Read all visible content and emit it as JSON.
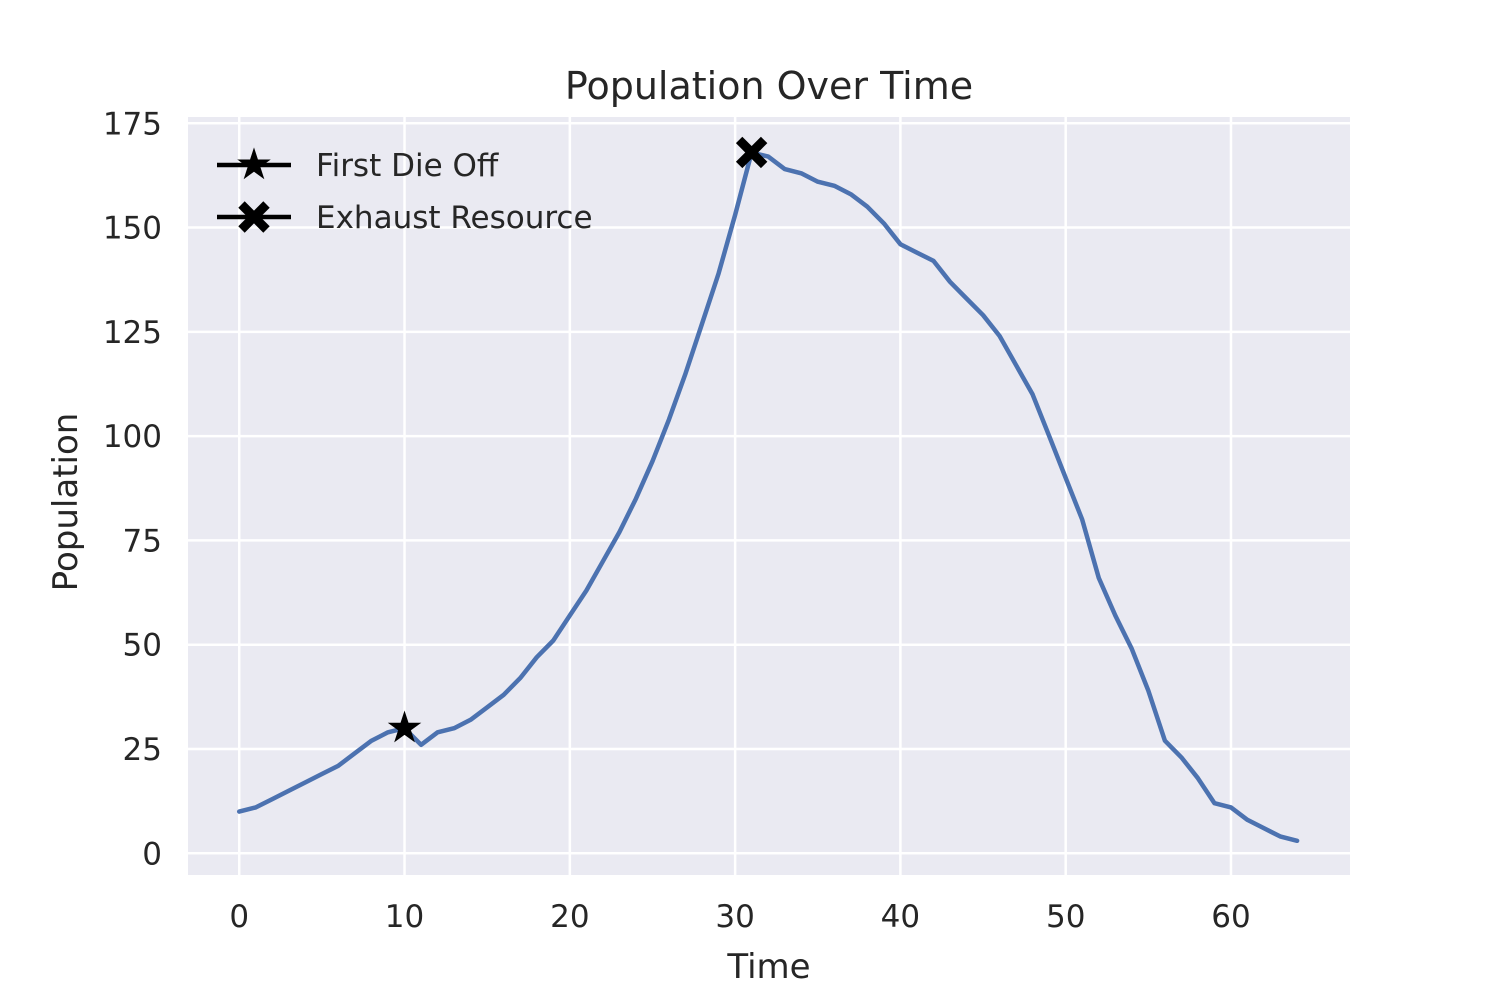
{
  "chart_data": {
    "type": "line",
    "title": "Population Over Time",
    "xlabel": "Time",
    "ylabel": "Population",
    "xlim": [
      -3.1,
      67.2
    ],
    "ylim": [
      -5.2,
      176.5
    ],
    "xticks": [
      0,
      10,
      20,
      30,
      40,
      50,
      60
    ],
    "yticks": [
      0,
      25,
      50,
      75,
      100,
      125,
      150,
      175
    ],
    "grid": true,
    "background": "#eaeaf2",
    "grid_color": "#ffffff",
    "series": [
      {
        "color": "#4c72b0",
        "x": [
          0,
          1,
          2,
          3,
          4,
          5,
          6,
          7,
          8,
          9,
          10,
          11,
          12,
          13,
          14,
          15,
          16,
          17,
          18,
          19,
          20,
          21,
          22,
          23,
          24,
          25,
          26,
          27,
          28,
          29,
          30,
          31,
          32,
          33,
          34,
          35,
          36,
          37,
          38,
          39,
          40,
          41,
          42,
          43,
          44,
          45,
          46,
          47,
          48,
          49,
          50,
          51,
          52,
          53,
          54,
          55,
          56,
          57,
          58,
          59,
          60,
          61,
          62,
          63,
          64
        ],
        "y": [
          10,
          11,
          13,
          15,
          17,
          19,
          21,
          24,
          27,
          29,
          30,
          26,
          29,
          30,
          32,
          35,
          38,
          42,
          47,
          51,
          57,
          63,
          70,
          77,
          85,
          94,
          104,
          115,
          127,
          139,
          153,
          168,
          167,
          164,
          163,
          161,
          160,
          158,
          155,
          151,
          146,
          144,
          142,
          137,
          133,
          129,
          124,
          117,
          110,
          100,
          90,
          80,
          66,
          57,
          49,
          39,
          27,
          23,
          18,
          12,
          11,
          8,
          6,
          4,
          3
        ]
      }
    ],
    "markers": [
      {
        "label": "First Die Off",
        "symbol": "star",
        "x": 10,
        "y": 30
      },
      {
        "label": "Exhaust Resource",
        "symbol": "x",
        "x": 31,
        "y": 168
      }
    ],
    "legend": {
      "placement": "top-left",
      "entries": [
        "First Die Off",
        "Exhaust Resource"
      ]
    }
  }
}
